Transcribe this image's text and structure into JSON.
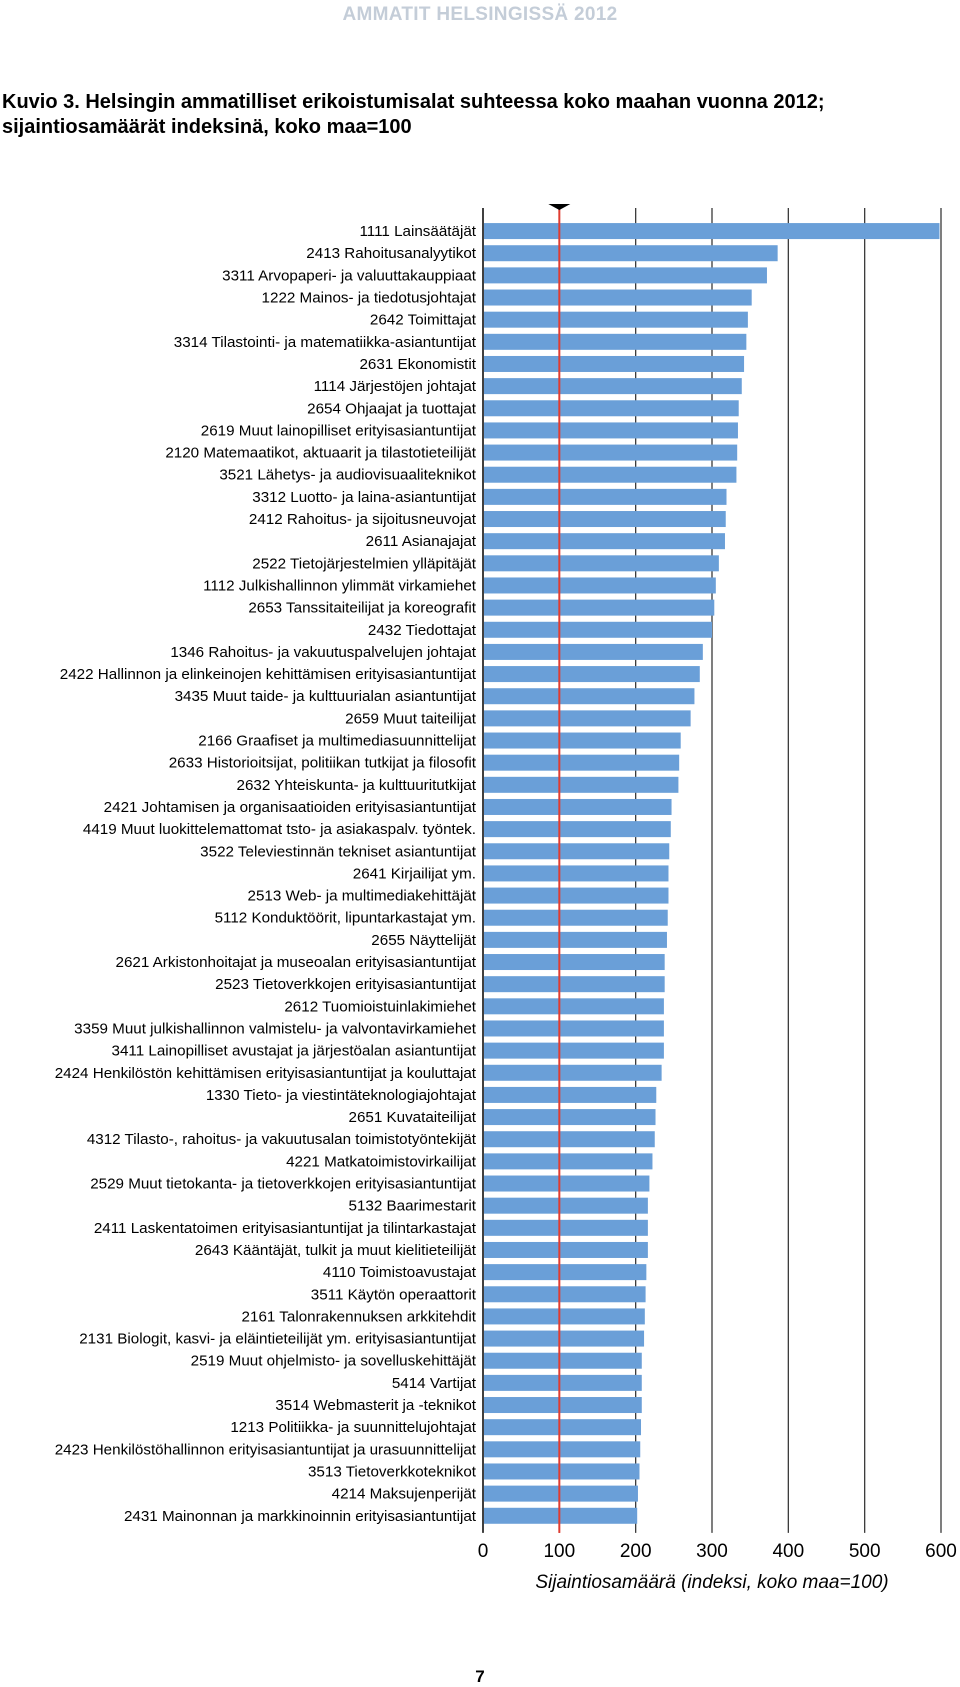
{
  "header": {
    "text": "AMMATIT HELSINGISSÄ 2012"
  },
  "title": {
    "line1": "Kuvio 3. Helsingin ammatilliset erikoistumisalat suhteessa koko maahan vuonna 2012;",
    "line2": "sijaintiosamäärät indeksinä, koko maa=100"
  },
  "page_number": "7",
  "chart_data": {
    "type": "bar",
    "orientation": "horizontal",
    "title": "",
    "xlabel": "Sijaintiosamäärä (indeksi, koko maa=100)",
    "ylabel": "",
    "xlim": [
      0,
      600
    ],
    "xticks": [
      0,
      100,
      200,
      300,
      400,
      500,
      600
    ],
    "grid": true,
    "reference_line": {
      "value": 100,
      "color": "#e03c31"
    },
    "bar_color": "#6a9fd8",
    "categories": [
      "1111 Lainsäätäjät",
      "2413 Rahoitusanalyytikot",
      "3311 Arvopaperi- ja valuuttakauppiaat",
      "1222 Mainos- ja tiedotusjohtajat",
      "2642  Toimittajat",
      "3314 Tilastointi- ja matematiikka-asiantuntijat",
      "2631 Ekonomistit",
      "1114 Järjestöjen johtajat",
      "2654 Ohjaajat ja tuottajat",
      "2619 Muut lainopilliset erityisasiantuntijat",
      "2120 Matemaatikot, aktuaarit ja tilastotieteilijät",
      "3521 Lähetys- ja audiovisuaaliteknikot",
      "3312 Luotto- ja laina-asiantuntijat",
      "2412 Rahoitus- ja sijoitusneuvojat",
      "2611 Asianajajat",
      "2522 Tietojärjestelmien ylläpitäjät",
      "1112  Julkishallinnon ylimmät virkamiehet",
      "2653 Tanssitaiteilijat ja koreografit",
      "2432 Tiedottajat",
      "1346 Rahoitus- ja vakuutuspalvelujen johtajat",
      "2422 Hallinnon ja elinkeinojen kehittämisen erityisasiantuntijat",
      "3435 Muut taide- ja kulttuurialan asiantuntijat",
      "2659 Muut taiteilijat",
      "2166 Graafiset ja multimediasuunnittelijat",
      "2633 Historioitsijat, politiikan tutkijat ja filosofit",
      "2632 Yhteiskunta- ja kulttuuritutkijat",
      "2421 Johtamisen ja organisaatioiden erityisasiantuntijat",
      "4419 Muut luokittelemattomat tsto-  ja asiakaspalv. työntek.",
      "3522 Televiestinnän tekniset asiantuntijat",
      "2641 Kirjailijat ym.",
      "2513 Web- ja multimediakehittäjät",
      "5112 Konduktöörit, lipuntarkastajat ym.",
      "2655 Näyttelijät",
      "2621 Arkistonhoitajat ja museoalan erityisasiantuntijat",
      "2523 Tietoverkkojen erityisasiantuntijat",
      "2612 Tuomioistuinlakimiehet",
      "3359 Muut julkishallinnon valmistelu- ja valvontavirkamiehet",
      "3411 Lainopilliset avustajat ja järjestöalan asiantuntijat",
      "2424 Henkilöstön kehittämisen erityisasiantuntijat ja kouluttajat",
      "1330 Tieto- ja viestintäteknologiajohtajat",
      "2651 Kuvataiteilijat",
      "4312 Tilasto-, rahoitus- ja vakuutusalan toimistotyöntekijät",
      "4221 Matkatoimistovirkailijat",
      "2529 Muut tietokanta- ja tietoverkkojen erityisasiantuntijat",
      "5132 Baarimestarit",
      "2411 Laskentatoimen erityisasiantuntijat ja tilintarkastajat",
      "2643 Kääntäjät, tulkit ja muut kielitieteilijät",
      "4110 Toimistoavustajat",
      "3511 Käytön operaattorit",
      "2161 Talonrakennuksen arkkitehdit",
      "2131 Biologit, kasvi- ja eläintieteilijät ym. erityisasiantuntijat",
      "2519 Muut ohjelmisto- ja sovelluskehittäjät",
      "5414 Vartijat",
      "3514 Webmasterit ja -teknikot",
      "1213 Politiikka- ja suunnittelujohtajat",
      "2423 Henkilöstöhallinnon erityisasiantuntijat ja urasuunnittelijat",
      "3513 Tietoverkkoteknikot",
      "4214 Maksujenperijät",
      "2431 Mainonnan ja markkinoinnin erityisasiantuntijat"
    ],
    "values": [
      598,
      386,
      372,
      352,
      347,
      345,
      342,
      339,
      335,
      334,
      333,
      332,
      319,
      318,
      317,
      309,
      305,
      303,
      300,
      288,
      284,
      277,
      272,
      259,
      257,
      256,
      247,
      246,
      244,
      243,
      243,
      242,
      241,
      238,
      238,
      237,
      237,
      237,
      234,
      227,
      226,
      225,
      222,
      218,
      216,
      216,
      216,
      214,
      213,
      212,
      211,
      208,
      208,
      208,
      207,
      206,
      205,
      203,
      202
    ]
  }
}
